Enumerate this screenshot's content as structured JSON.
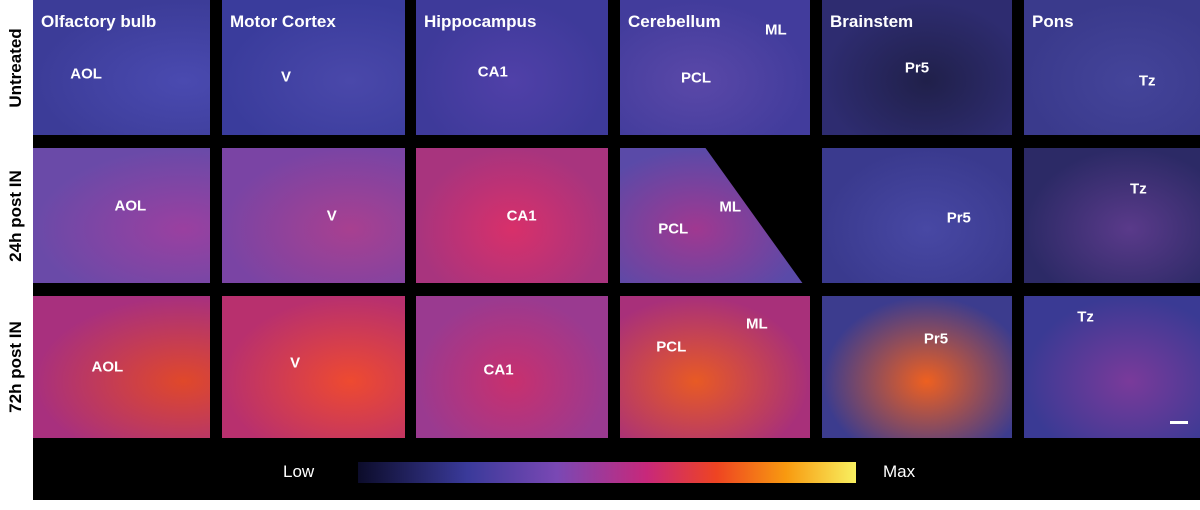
{
  "columns": [
    "Olfactory bulb",
    "Motor Cortex",
    "Hippocampus",
    "Cerebellum",
    "Brainstem",
    "Pons"
  ],
  "rows": [
    "Untreated",
    "24h post IN",
    "72h post IN"
  ],
  "cells": [
    [
      [
        "AOL"
      ],
      [
        "V"
      ],
      [
        "CA1"
      ],
      [
        "ML",
        "PCL"
      ],
      [
        "Pr5"
      ],
      [
        "Tz"
      ]
    ],
    [
      [
        "AOL"
      ],
      [
        "V"
      ],
      [
        "CA1"
      ],
      [
        "ML",
        "PCL"
      ],
      [
        "Pr5"
      ],
      [
        "Tz"
      ]
    ],
    [
      [
        "AOL"
      ],
      [
        "V"
      ],
      [
        "CA1"
      ],
      [
        "ML",
        "PCL"
      ],
      [
        "Pr5"
      ],
      [
        "Tz"
      ]
    ]
  ],
  "colorbar": {
    "low": "Low",
    "high": "Max"
  }
}
